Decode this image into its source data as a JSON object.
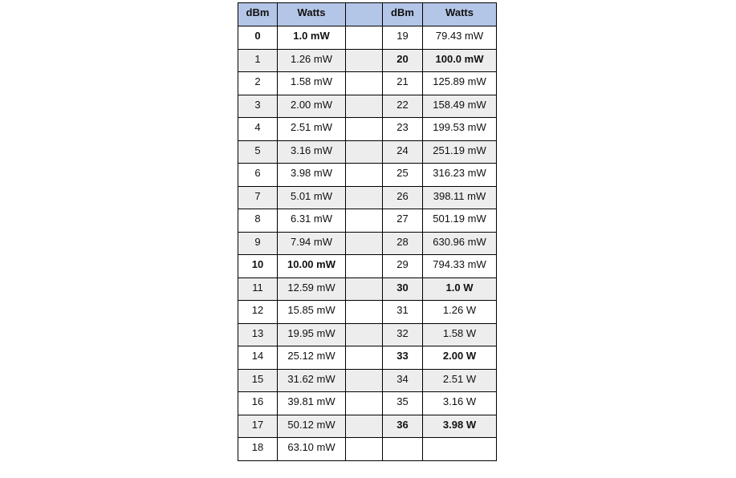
{
  "headers": [
    "dBm",
    "Watts",
    "",
    "dBm",
    "Watts"
  ],
  "colors": {
    "header_bg": "#b4c6e7",
    "alt_row_bg": "#ededed"
  },
  "rows": [
    {
      "l_dbm": "0",
      "l_watts": "1.0 mW",
      "l_bold": true,
      "r_dbm": "19",
      "r_watts": "79.43 mW",
      "r_bold": false
    },
    {
      "l_dbm": "1",
      "l_watts": "1.26 mW",
      "l_bold": false,
      "r_dbm": "20",
      "r_watts": "100.0 mW",
      "r_bold": true
    },
    {
      "l_dbm": "2",
      "l_watts": "1.58 mW",
      "l_bold": false,
      "r_dbm": "21",
      "r_watts": "125.89 mW",
      "r_bold": false
    },
    {
      "l_dbm": "3",
      "l_watts": "2.00 mW",
      "l_bold": false,
      "r_dbm": "22",
      "r_watts": "158.49 mW",
      "r_bold": false
    },
    {
      "l_dbm": "4",
      "l_watts": "2.51 mW",
      "l_bold": false,
      "r_dbm": "23",
      "r_watts": "199.53 mW",
      "r_bold": false
    },
    {
      "l_dbm": "5",
      "l_watts": "3.16 mW",
      "l_bold": false,
      "r_dbm": "24",
      "r_watts": "251.19 mW",
      "r_bold": false
    },
    {
      "l_dbm": "6",
      "l_watts": "3.98 mW",
      "l_bold": false,
      "r_dbm": "25",
      "r_watts": "316.23 mW",
      "r_bold": false
    },
    {
      "l_dbm": "7",
      "l_watts": "5.01 mW",
      "l_bold": false,
      "r_dbm": "26",
      "r_watts": "398.11 mW",
      "r_bold": false
    },
    {
      "l_dbm": "8",
      "l_watts": "6.31 mW",
      "l_bold": false,
      "r_dbm": "27",
      "r_watts": "501.19 mW",
      "r_bold": false
    },
    {
      "l_dbm": "9",
      "l_watts": "7.94 mW",
      "l_bold": false,
      "r_dbm": "28",
      "r_watts": "630.96 mW",
      "r_bold": false
    },
    {
      "l_dbm": "10",
      "l_watts": "10.00 mW",
      "l_bold": true,
      "r_dbm": "29",
      "r_watts": "794.33 mW",
      "r_bold": false
    },
    {
      "l_dbm": "11",
      "l_watts": "12.59 mW",
      "l_bold": false,
      "r_dbm": "30",
      "r_watts": "1.0 W",
      "r_bold": true
    },
    {
      "l_dbm": "12",
      "l_watts": "15.85 mW",
      "l_bold": false,
      "r_dbm": "31",
      "r_watts": "1.26 W",
      "r_bold": false
    },
    {
      "l_dbm": "13",
      "l_watts": "19.95 mW",
      "l_bold": false,
      "r_dbm": "32",
      "r_watts": "1.58 W",
      "r_bold": false
    },
    {
      "l_dbm": "14",
      "l_watts": "25.12 mW",
      "l_bold": false,
      "r_dbm": "33",
      "r_watts": "2.00 W",
      "r_bold": true
    },
    {
      "l_dbm": "15",
      "l_watts": "31.62 mW",
      "l_bold": false,
      "r_dbm": "34",
      "r_watts": "2.51 W",
      "r_bold": false
    },
    {
      "l_dbm": "16",
      "l_watts": "39.81 mW",
      "l_bold": false,
      "r_dbm": "35",
      "r_watts": "3.16 W",
      "r_bold": false
    },
    {
      "l_dbm": "17",
      "l_watts": "50.12 mW",
      "l_bold": false,
      "r_dbm": "36",
      "r_watts": "3.98 W",
      "r_bold": true
    },
    {
      "l_dbm": "18",
      "l_watts": "63.10 mW",
      "l_bold": false,
      "r_dbm": "",
      "r_watts": "",
      "r_bold": false
    }
  ]
}
